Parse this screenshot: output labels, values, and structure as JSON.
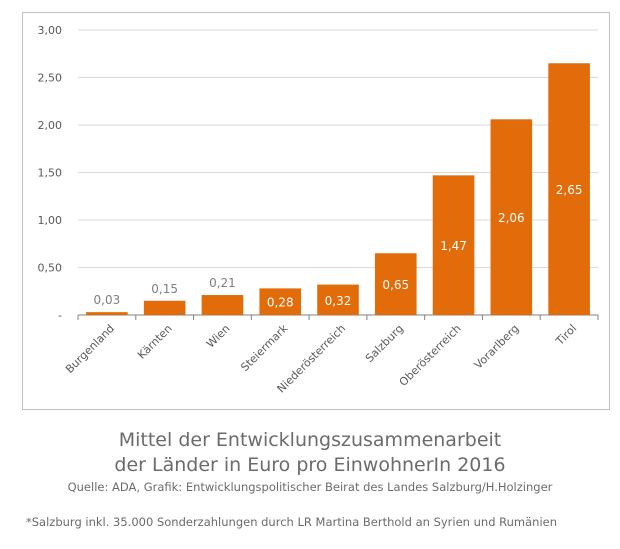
{
  "chart_data": {
    "type": "bar",
    "categories": [
      "Burgenland",
      "Kärnten",
      "Wien",
      "Steiermark",
      "Niederösterreich",
      "Salzburg",
      "Oberösterreich",
      "Vorarlberg",
      "Tirol"
    ],
    "values": [
      0.03,
      0.15,
      0.21,
      0.28,
      0.32,
      0.65,
      1.47,
      2.06,
      2.65
    ],
    "data_labels": [
      "0,03",
      "0,15",
      "0,21",
      "0,28",
      "0,32",
      "0,65",
      "1,47",
      "2,06",
      "2,65"
    ],
    "yticks": [
      "-",
      "0,50",
      "1,00",
      "1,50",
      "2,00",
      "2,50",
      "3,00"
    ],
    "ylim": [
      0,
      3
    ],
    "grid": true,
    "bar_color": "#E26B0A",
    "title": "Mittel der Entwicklungszusammenarbeit",
    "title_line2": "der Länder in Euro pro EinwohnerIn 2016",
    "source": "Quelle: ADA, Grafik: Entwicklungspolitischer Beirat des Landes Salzburg/H.Holzinger",
    "footnote": "*Salzburg inkl. 35.000 Sonderzahlungen durch LR Martina Berthold an Syrien und Rumänien"
  }
}
